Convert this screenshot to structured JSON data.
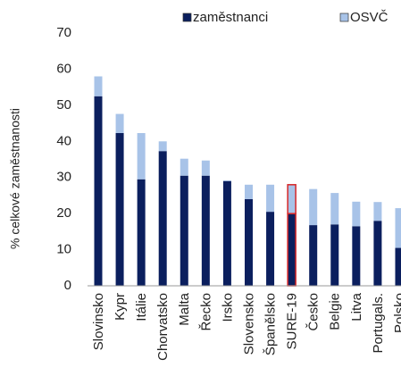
{
  "chart_data": {
    "type": "stacked_bar",
    "ylabel": "% celkové zaměstnanosti",
    "categories": [
      "Slovinsko",
      "Kypr",
      "Itálie",
      "Chorvatsko",
      "Malta",
      "Řecko",
      "Irsko",
      "Slovensko",
      "Španělsko",
      "SURE-19",
      "Česko",
      "Belgie",
      "Litva",
      "Portugals.",
      "Polsko"
    ],
    "series": [
      {
        "name": "zaměstnanci",
        "color": "#0b1f5e",
        "values": [
          52.5,
          42.3,
          29.5,
          37.3,
          30.5,
          30.5,
          29,
          24,
          20.5,
          20,
          16.8,
          17,
          16.5,
          18,
          10.5
        ]
      },
      {
        "name": "OSVČ",
        "color": "#a8c3e8",
        "values": [
          5.5,
          5.3,
          12.8,
          2.7,
          4.7,
          4.2,
          0.2,
          4,
          7.5,
          8,
          10,
          8.7,
          6.8,
          5.2,
          11
        ]
      }
    ],
    "highlight": {
      "category": 9,
      "color": "#d62728"
    },
    "ylim": [
      0,
      70
    ],
    "yticks": [
      0,
      10,
      20,
      30,
      40,
      50,
      60,
      70
    ],
    "grid": false,
    "legend": "top"
  }
}
